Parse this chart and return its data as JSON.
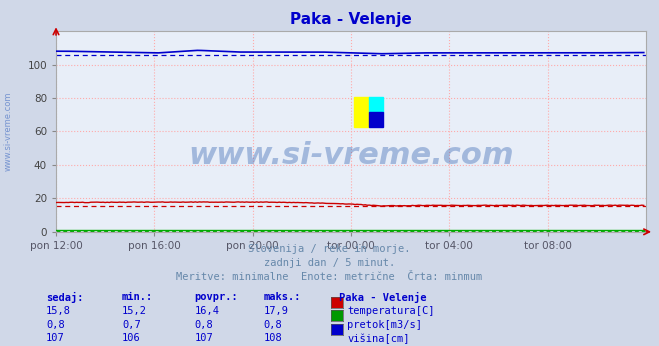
{
  "title": "Paka - Velenje",
  "title_color": "#0000cc",
  "bg_color": "#d0d8e8",
  "plot_bg_color": "#e8eef8",
  "watermark_text": "www.si-vreme.com",
  "watermark_color": "#2255aa",
  "sidebar_text": "www.si-vreme.com",
  "sidebar_color": "#6688cc",
  "subtitle_lines": [
    "Slovenija / reke in morje.",
    "zadnji dan / 5 minut.",
    "Meritve: minimalne  Enote: metrične  Črta: minmum"
  ],
  "subtitle_color": "#6688aa",
  "xlim": [
    0,
    288
  ],
  "ylim": [
    0,
    120
  ],
  "yticks": [
    0,
    20,
    40,
    60,
    80,
    100
  ],
  "xtick_labels": [
    "pon 12:00",
    "pon 16:00",
    "pon 20:00",
    "tor 00:00",
    "tor 04:00",
    "tor 08:00"
  ],
  "xtick_positions": [
    0,
    48,
    96,
    144,
    192,
    240
  ],
  "grid_color": "#ffaaaa",
  "temp_color": "#cc0000",
  "temp_min_val": 15.2,
  "flow_color": "#00aa00",
  "flow_min_val": 0.7,
  "height_color": "#0000cc",
  "height_min_val": 106,
  "legend_items": [
    {
      "label": "temperatura[C]",
      "color": "#cc0000"
    },
    {
      "label": "pretok[m3/s]",
      "color": "#009900"
    },
    {
      "label": "višina[cm]",
      "color": "#0000cc"
    }
  ],
  "table_headers": [
    "sedaj:",
    "min.:",
    "povpr.:",
    "maks.:"
  ],
  "table_rows": [
    [
      "15,8",
      "15,2",
      "16,4",
      "17,9"
    ],
    [
      "0,8",
      "0,7",
      "0,8",
      "0,8"
    ],
    [
      "107",
      "106",
      "107",
      "108"
    ]
  ],
  "table_color": "#0000cc",
  "station_label": "Paka - Velenje",
  "n_points": 288
}
